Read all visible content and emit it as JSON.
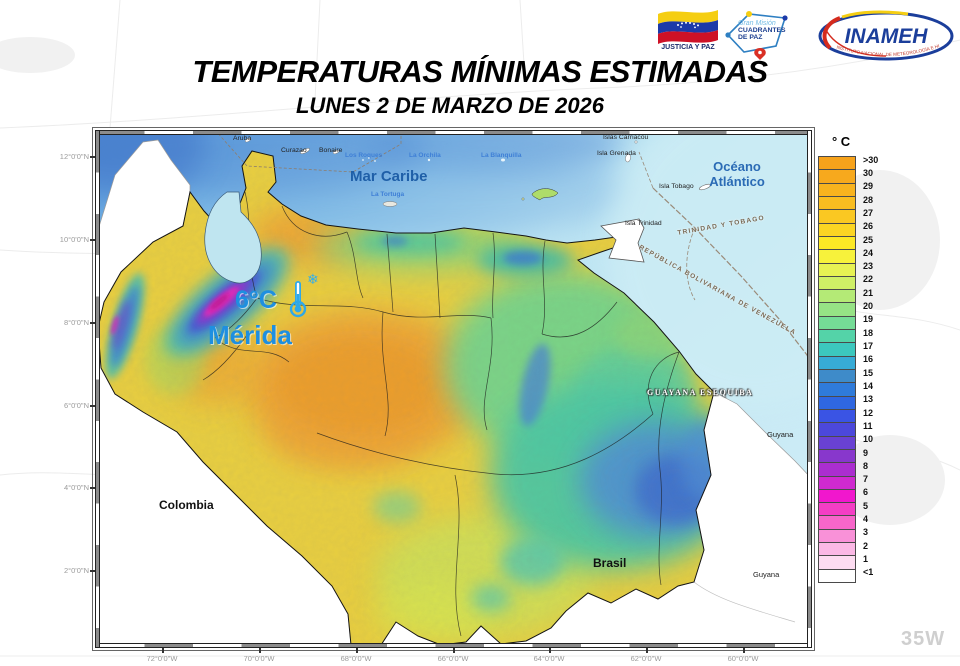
{
  "header": {
    "title": "TEMPERATURAS MÍNIMAS ESTIMADAS",
    "subtitle": "LUNES 2 DE MARZO DE 2026",
    "logos": {
      "justicia": "JUSTICIA Y PAZ",
      "mission_top": "Gran Misión",
      "mission_bottom": "CUADRANTES DE PAZ",
      "inameh": "INAMEH",
      "inameh_sub": "INSTITUTO NACIONAL DE METEOROLOGÍA E HIDROLOGÍA"
    }
  },
  "map": {
    "labels": {
      "mar_caribe": "Mar Caribe",
      "oceano_atlantico": "Océano Atlántico",
      "aruba": "Aruba",
      "curazao": "Curazao",
      "bonaire": "Bonaire",
      "los_roques": "Los Roques",
      "la_orchila": "La Orchila",
      "la_blanquilla": "La Blanquilla",
      "la_tortuga": "La Tortuga",
      "islas_carriacou": "Islas Carriacou",
      "isla_grenada": "Isla Grenada",
      "isla_tobago": "Isla Tobago",
      "isla_trinidad": "Isla Trinidad",
      "colombia": "Colombia",
      "brasil": "Brasil",
      "guyana_east": "Guyana",
      "guyana_south": "Guyana",
      "guayana_esequiba": "GUAYANA ESEQUIBA",
      "republica_bolivariana": "REPÚBLICA BOLIVARIANA DE VENEZUELA",
      "trinidad_tobago": "TRINIDAD Y TOBAGO"
    },
    "annotation": {
      "temperature": "6°C",
      "city": "Mérida",
      "snowflake": "❄"
    },
    "axis": {
      "lat": [
        "12°0'0\"N",
        "10°0'0\"N",
        "8°0'0\"N",
        "6°0'0\"N",
        "4°0'0\"N",
        "2°0'0\"N"
      ],
      "lon": [
        "72°0'0\"W",
        "70°0'0\"W",
        "68°0'0\"W",
        "66°0'0\"W",
        "64°0'0\"W",
        "62°0'0\"W",
        "60°0'0\"W"
      ]
    }
  },
  "legend": {
    "title": "° C",
    "entries": [
      {
        "label": ">30",
        "color": "#F6A21B"
      },
      {
        "label": "30",
        "color": "#F7A91D"
      },
      {
        "label": "29",
        "color": "#F8B31E"
      },
      {
        "label": "28",
        "color": "#F9BD20"
      },
      {
        "label": "27",
        "color": "#FAC822"
      },
      {
        "label": "26",
        "color": "#FBD523"
      },
      {
        "label": "25",
        "color": "#FCE825"
      },
      {
        "label": "24",
        "color": "#F7F23B"
      },
      {
        "label": "23",
        "color": "#E7F253"
      },
      {
        "label": "22",
        "color": "#CFEF66"
      },
      {
        "label": "21",
        "color": "#B4EA76"
      },
      {
        "label": "20",
        "color": "#96E385"
      },
      {
        "label": "19",
        "color": "#75DC96"
      },
      {
        "label": "18",
        "color": "#54D3A8"
      },
      {
        "label": "17",
        "color": "#3CC8BE"
      },
      {
        "label": "16",
        "color": "#37ABD6"
      },
      {
        "label": "15",
        "color": "#3E8BC9"
      },
      {
        "label": "14",
        "color": "#2F7BDA"
      },
      {
        "label": "13",
        "color": "#2F67E1"
      },
      {
        "label": "12",
        "color": "#3A54E4"
      },
      {
        "label": "11",
        "color": "#4C48DB"
      },
      {
        "label": "10",
        "color": "#6941D3"
      },
      {
        "label": "9",
        "color": "#8837CC"
      },
      {
        "label": "8",
        "color": "#AB2ED0"
      },
      {
        "label": "7",
        "color": "#CF2AD0"
      },
      {
        "label": "6",
        "color": "#F117CD"
      },
      {
        "label": "5",
        "color": "#F43EC5"
      },
      {
        "label": "4",
        "color": "#F766CA"
      },
      {
        "label": "3",
        "color": "#F991D8"
      },
      {
        "label": "2",
        "color": "#FBB8E5"
      },
      {
        "label": "1",
        "color": "#FDDCF1"
      },
      {
        "label": "<1",
        "color": "#FFFFFF"
      }
    ]
  },
  "background": {
    "corner_label": "35W"
  }
}
